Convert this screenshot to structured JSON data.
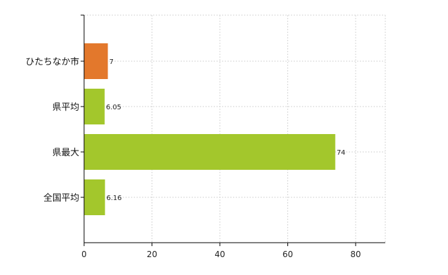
{
  "chart_data": {
    "type": "bar",
    "orientation": "horizontal",
    "categories": [
      "ひたちなか市",
      "県平均",
      "県最大",
      "全国平均"
    ],
    "values": [
      7,
      6.05,
      74,
      6.16
    ],
    "data_labels": [
      "7",
      "6.05",
      "74",
      "6.16"
    ],
    "bar_colors": [
      "#E3782C",
      "#A3C72C",
      "#A3C72C",
      "#A3C72C"
    ],
    "xlim": [
      0,
      88
    ],
    "xticks": [
      0,
      20,
      40,
      60,
      80
    ],
    "title": "",
    "xlabel": "",
    "ylabel": "",
    "grid": true,
    "grid_color": "#d6d6d6",
    "legend": "none"
  }
}
